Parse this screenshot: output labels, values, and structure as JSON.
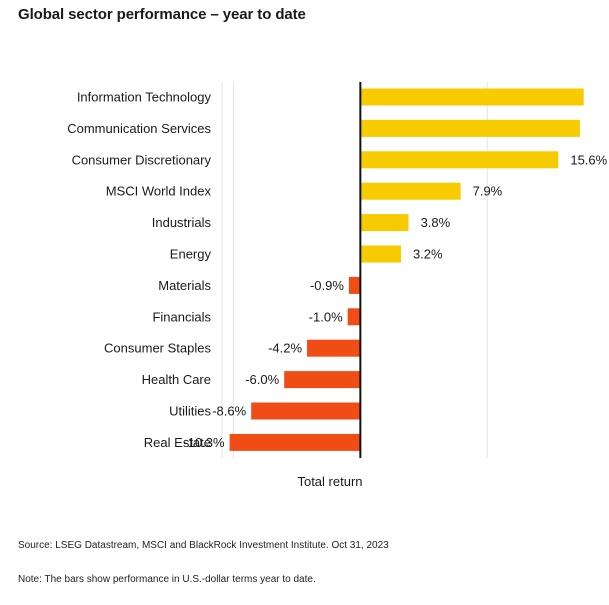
{
  "title": "Global sector performance – year to date",
  "source": "Source: LSEG Datastream, MSCI and BlackRock Investment Institute. Oct 31, 2023",
  "note": "Note: The bars show performance in U.S.-dollar terms year to date.",
  "chart_data": {
    "type": "bar",
    "orientation": "horizontal",
    "title": "Global sector performance – year to date",
    "xlabel": "Total return",
    "ylabel": "",
    "xlim": [
      -10.9,
      17.7
    ],
    "grid": true,
    "legend": "none",
    "colors": {
      "positive": "#f6cc00",
      "negative": "#f04d16"
    },
    "categories": [
      "Information Technology",
      "Communication Services",
      "Consumer Discretionary",
      "MSCI World Index",
      "Industrials",
      "Energy",
      "Materials",
      "Financials",
      "Consumer Staples",
      "Health Care",
      "Utilities",
      "Real Estate"
    ],
    "values": [
      17.6,
      17.3,
      15.6,
      7.9,
      3.8,
      3.2,
      -0.9,
      -1.0,
      -4.2,
      -6.0,
      -8.6,
      -10.3
    ],
    "labels": [
      "",
      "",
      "15.6%",
      "7.9%",
      "3.8%",
      "3.2%",
      "-0.9%",
      "-1.0%",
      "-4.2%",
      "-6.0%",
      "-8.6%",
      "-10.3%"
    ]
  }
}
